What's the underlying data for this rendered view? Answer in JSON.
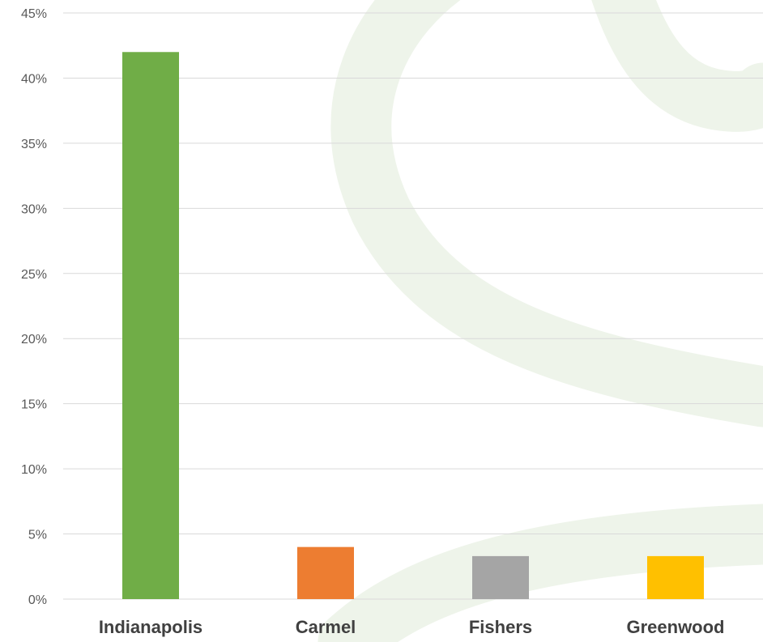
{
  "chart_data": {
    "type": "bar",
    "title": "",
    "xlabel": "",
    "ylabel": "",
    "categories": [
      "Indianapolis",
      "Carmel",
      "Fishers",
      "Greenwood"
    ],
    "values": [
      42,
      4,
      3.3,
      3.3
    ],
    "value_unit": "%",
    "ylim": [
      0,
      45
    ],
    "yticks": [
      "0%",
      "5%",
      "10%",
      "15%",
      "20%",
      "25%",
      "30%",
      "35%",
      "40%",
      "45%"
    ],
    "grid": true,
    "legend": "none",
    "colors": [
      "#70AD47",
      "#ED7D31",
      "#A5A5A5",
      "#FFC000"
    ],
    "gridline_color": "#D9D9D9",
    "watermark_color": "#EEF4EA"
  }
}
